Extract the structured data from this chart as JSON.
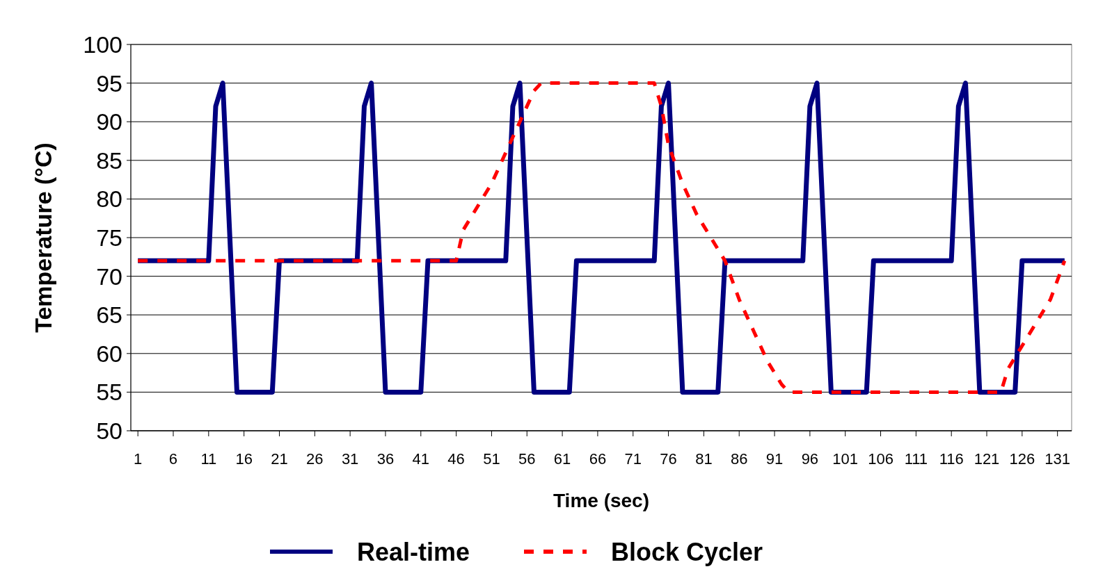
{
  "chart_data": {
    "type": "line",
    "xlabel": "Time (sec)",
    "ylabel": "Temperature (°C)",
    "xlim": [
      0,
      133
    ],
    "xticks": [
      1,
      6,
      11,
      16,
      21,
      26,
      31,
      36,
      41,
      46,
      51,
      56,
      61,
      66,
      71,
      76,
      81,
      86,
      91,
      96,
      101,
      106,
      111,
      116,
      121,
      126,
      131
    ],
    "ylim": [
      50,
      100
    ],
    "yticks": [
      50,
      55,
      60,
      65,
      70,
      75,
      80,
      85,
      90,
      95,
      100
    ],
    "grid": "y",
    "legend": "bottom",
    "marker": "none",
    "series": [
      {
        "name": "Real-time",
        "color": "#000080",
        "line_style": "solid",
        "x": [
          1,
          11,
          12,
          13,
          15,
          20,
          21,
          32,
          33,
          34,
          36,
          41,
          42,
          53,
          54,
          55,
          57,
          62,
          63,
          74,
          75,
          76,
          78,
          83,
          84,
          95,
          96,
          97,
          99,
          104,
          105,
          116,
          117,
          118,
          120,
          125,
          126,
          132
        ],
        "values": [
          72,
          72,
          92,
          95,
          55,
          55,
          72,
          72,
          92,
          95,
          55,
          55,
          72,
          72,
          92,
          95,
          55,
          55,
          72,
          72,
          92,
          95,
          55,
          55,
          72,
          72,
          92,
          95,
          55,
          55,
          72,
          72,
          92,
          95,
          55,
          55,
          72,
          72
        ]
      },
      {
        "name": "Block Cycler",
        "color": "#ff0000",
        "line_style": "dashed",
        "x": [
          1,
          46,
          47,
          49,
          51,
          53,
          55,
          57,
          58,
          74,
          75,
          76,
          78,
          80,
          82,
          84,
          86,
          88,
          90,
          92,
          93,
          123,
          124,
          126,
          128,
          130,
          132
        ],
        "values": [
          72,
          72,
          76,
          79,
          82,
          86,
          90,
          94,
          95,
          95,
          92,
          87,
          82,
          78,
          75,
          72,
          67,
          63,
          59,
          56,
          55,
          55,
          58,
          61,
          64,
          67,
          72
        ]
      }
    ]
  }
}
